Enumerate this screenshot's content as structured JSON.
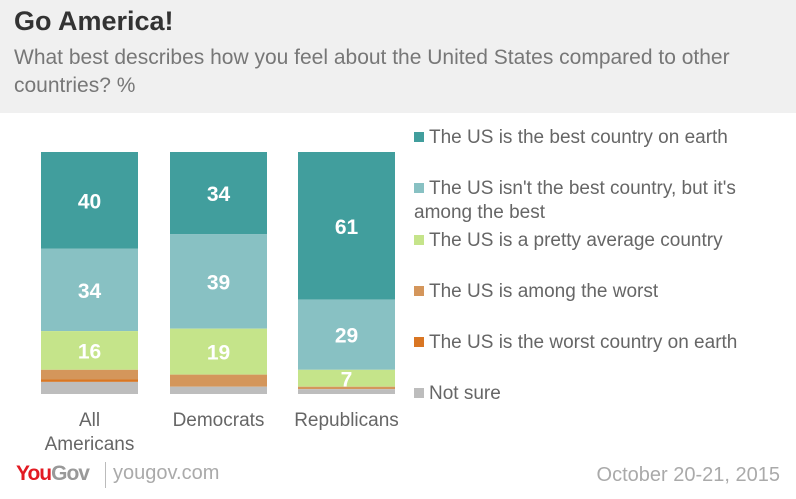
{
  "chart_data": {
    "type": "bar",
    "stacked": true,
    "title": "Go America!",
    "subtitle": "What best describes how you feel about the United States compared to other countries? %",
    "categories": [
      "All Americans",
      "Democrats",
      "Republicans"
    ],
    "series": [
      {
        "name": "The US is the best country on earth",
        "color": "#419e9d",
        "values": [
          40,
          34,
          61
        ]
      },
      {
        "name": "The US isn't the best country, but it's among the best",
        "color": "#88c1c3",
        "values": [
          34,
          39,
          29
        ]
      },
      {
        "name": "The US is a pretty average country",
        "color": "#c5e48a",
        "values": [
          16,
          19,
          7
        ]
      },
      {
        "name": "The US is among the worst",
        "color": "#d4965b",
        "values": [
          4,
          5,
          1
        ]
      },
      {
        "name": "The US is the worst country on earth",
        "color": "#d97623",
        "values": [
          1,
          0,
          0
        ]
      },
      {
        "name": "Not sure",
        "color": "#bdbdbd",
        "values": [
          5,
          3,
          2
        ]
      }
    ],
    "data_labels": [
      [
        "40",
        "34",
        "16"
      ],
      [
        "34",
        "39",
        "19"
      ],
      [
        "61",
        "29",
        "7"
      ]
    ],
    "legend": "right",
    "ylim": [
      0,
      100
    ]
  },
  "footer": {
    "brand_you": "You",
    "brand_gov": "Gov",
    "url": "yougov.com",
    "date": "October 20-21, 2015"
  }
}
